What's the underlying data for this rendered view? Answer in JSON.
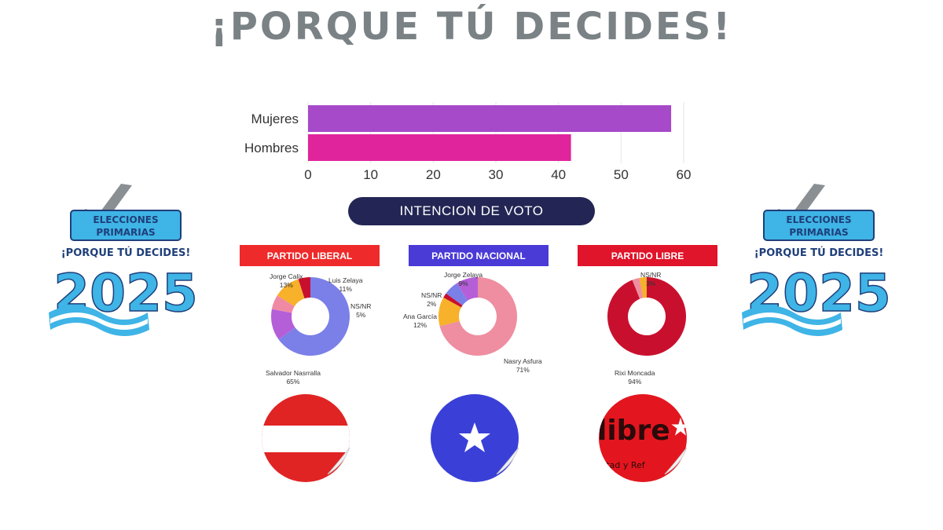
{
  "title": "¡PORQUE TÚ DECIDES!",
  "chart_data": [
    {
      "type": "bar",
      "orientation": "horizontal",
      "categories": [
        "Mujeres",
        "Hombres"
      ],
      "values": [
        58,
        42
      ],
      "colors": [
        "#a64ac9",
        "#e0249c"
      ],
      "xlim": [
        0,
        60
      ],
      "xticks": [
        0,
        10,
        20,
        30,
        40,
        50,
        60
      ],
      "grid": true
    },
    {
      "type": "pie",
      "donut": true,
      "title": "PARTIDO LIBERAL",
      "slices": [
        {
          "label": "Salvador Nasrralla",
          "value": 65,
          "color": "#7b7fe8"
        },
        {
          "label": "Jorge Calix",
          "value": 13,
          "color": "#b45ed8"
        },
        {
          "label": "",
          "value": 6,
          "color": "#f08aa4"
        },
        {
          "label": "Luis Zelaya",
          "value": 11,
          "color": "#f7b12a"
        },
        {
          "label": "NS/NR",
          "value": 5,
          "color": "#c8102e"
        }
      ]
    },
    {
      "type": "pie",
      "donut": true,
      "title": "PARTIDO NACIONAL",
      "slices": [
        {
          "label": "Nasry Asfura",
          "value": 71,
          "color": "#ee8ea0"
        },
        {
          "label": "Ana García",
          "value": 12,
          "color": "#f7b12a"
        },
        {
          "label": "NS/NR",
          "value": 2,
          "color": "#c8102e"
        },
        {
          "label": "",
          "value": 6,
          "color": "#7b7fe8"
        },
        {
          "label": "Jorge Zelaya",
          "value": 9,
          "color": "#b45ed8"
        }
      ]
    },
    {
      "type": "pie",
      "donut": true,
      "title": "PARTIDO LIBRE",
      "slices": [
        {
          "label": "Rixi Moncada",
          "value": 94,
          "color": "#c8102e"
        },
        {
          "label": "",
          "value": 3,
          "color": "#ee8ea0"
        },
        {
          "label": "NS/NR",
          "value": 3,
          "color": "#f7b12a"
        }
      ]
    }
  ],
  "pill_label": "INTENCION DE VOTO",
  "parties": [
    {
      "name": "PARTIDO LIBERAL",
      "header_color": "#ef2a2a"
    },
    {
      "name": "PARTIDO NACIONAL",
      "header_color": "#4a3ad6"
    },
    {
      "name": "PARTIDO LIBRE",
      "header_color": "#e0142a"
    }
  ],
  "labels": {
    "liberal": {
      "calix": {
        "name": "Jorge Calix",
        "pct": "13%"
      },
      "zelaya": {
        "name": "Luis Zelaya",
        "pct": "11%"
      },
      "nsnr": {
        "name": "NS/NR",
        "pct": "5%"
      },
      "nasrralla": {
        "name": "Salvador Nasrralla",
        "pct": "65%"
      }
    },
    "nacional": {
      "zelaya": {
        "name": "Jorge Zelaya",
        "pct": "9%"
      },
      "nsnr": {
        "name": "NS/NR",
        "pct": "2%"
      },
      "garcia": {
        "name": "Ana García",
        "pct": "12%"
      },
      "asfura": {
        "name": "Nasry Asfura",
        "pct": "71%"
      }
    },
    "libre": {
      "nsnr": {
        "name": "NS/NR",
        "pct": "3%"
      },
      "moncada": {
        "name": "Rixi Moncada",
        "pct": "94%"
      }
    }
  },
  "logo": {
    "line1": "ELECCIONES",
    "line2": "PRIMARIAS",
    "tagline": "¡PORQUE TÚ DECIDES!",
    "year": "2025"
  },
  "sticker_texts": {
    "libre_word": "libre",
    "libre_motto": "ertad y Ref"
  },
  "colors": {
    "title": "#7a8285",
    "pill": "#232654",
    "logo_blue": "#3fb4e6",
    "logo_navy": "#1f3f7a"
  }
}
